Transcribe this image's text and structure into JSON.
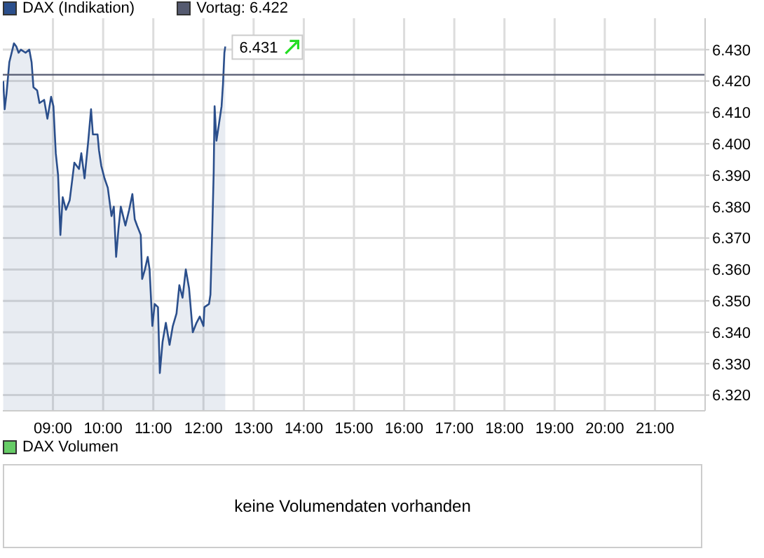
{
  "chart_data": [
    {
      "type": "area",
      "legend": "top left",
      "grid": true,
      "xlim": [
        8,
        22
      ],
      "xticks": [
        {
          "value": 9,
          "label": "09:00"
        },
        {
          "value": 10,
          "label": "10:00"
        },
        {
          "value": 11,
          "label": "11:00"
        },
        {
          "value": 12,
          "label": "12:00"
        },
        {
          "value": 13,
          "label": "13:00"
        },
        {
          "value": 14,
          "label": "14:00"
        },
        {
          "value": 15,
          "label": "15:00"
        },
        {
          "value": 16,
          "label": "16:00"
        },
        {
          "value": 17,
          "label": "17:00"
        },
        {
          "value": 18,
          "label": "18:00"
        },
        {
          "value": 19,
          "label": "19:00"
        },
        {
          "value": 20,
          "label": "20:00"
        },
        {
          "value": 21,
          "label": "21:00"
        }
      ],
      "ylim": [
        6315,
        6440
      ],
      "yticks": [
        {
          "value": 6320,
          "label": "6.320"
        },
        {
          "value": 6330,
          "label": "6.330"
        },
        {
          "value": 6340,
          "label": "6.340"
        },
        {
          "value": 6350,
          "label": "6.350"
        },
        {
          "value": 6360,
          "label": "6.360"
        },
        {
          "value": 6370,
          "label": "6.370"
        },
        {
          "value": 6380,
          "label": "6.380"
        },
        {
          "value": 6390,
          "label": "6.390"
        },
        {
          "value": 6400,
          "label": "6.400"
        },
        {
          "value": 6410,
          "label": "6.410"
        },
        {
          "value": 6420,
          "label": "6.420"
        },
        {
          "value": 6430,
          "label": "6.430"
        }
      ],
      "ref_lines": [
        {
          "axis": "y",
          "value": 6422,
          "label": "Vortag: 6.422",
          "color": "#555a70"
        }
      ],
      "annotations": [
        {
          "text": "6.431",
          "x": 12.435,
          "y": 6431
        }
      ],
      "series": [
        {
          "name": "DAX (Indikation)",
          "color": "#2b4f8c",
          "x": [
            8.009,
            8.037,
            8.074,
            8.13,
            8.222,
            8.269,
            8.315,
            8.361,
            8.454,
            8.528,
            8.574,
            8.611,
            8.685,
            8.731,
            8.824,
            8.889,
            8.963,
            9.009,
            9.056,
            9.102,
            9.148,
            9.194,
            9.259,
            9.333,
            9.38,
            9.426,
            9.519,
            9.565,
            9.63,
            9.704,
            9.759,
            9.796,
            9.889,
            9.917,
            9.963,
            10.028,
            10.093,
            10.167,
            10.213,
            10.259,
            10.306,
            10.352,
            10.444,
            10.519,
            10.583,
            10.63,
            10.676,
            10.75,
            10.778,
            10.833,
            10.889,
            10.926,
            10.981,
            11.028,
            11.093,
            11.13,
            11.185,
            11.25,
            11.324,
            11.389,
            11.463,
            11.519,
            11.583,
            11.648,
            11.713,
            11.787,
            11.861,
            11.926,
            12.0,
            12.019,
            12.111,
            12.139,
            12.176,
            12.204,
            12.222,
            12.259,
            12.306,
            12.361,
            12.389,
            12.417,
            12.435
          ],
          "values": [
            6420,
            6411,
            6416,
            6426,
            6432,
            6431,
            6429,
            6430,
            6429,
            6430,
            6426,
            6418,
            6417,
            6413,
            6414,
            6408,
            6415,
            6412,
            6397,
            6390,
            6371,
            6383,
            6379,
            6382,
            6388,
            6394,
            6392,
            6397,
            6389,
            6401,
            6411,
            6403,
            6403,
            6398,
            6393,
            6389,
            6386,
            6377,
            6380,
            6364,
            6373,
            6380,
            6374,
            6379,
            6384,
            6376,
            6374,
            6371,
            6357,
            6360,
            6364,
            6360,
            6342,
            6349,
            6348,
            6327,
            6337,
            6343,
            6336,
            6342,
            6346,
            6355,
            6351,
            6360,
            6354,
            6340,
            6343,
            6345,
            6342,
            6348,
            6349,
            6352,
            6373,
            6391,
            6412,
            6401,
            6406,
            6412,
            6419,
            6429,
            6431
          ]
        }
      ]
    },
    {
      "type": "other",
      "title": "DAX Volumen",
      "annotations": [
        "keine Volumendaten vorhanden"
      ]
    }
  ]
}
